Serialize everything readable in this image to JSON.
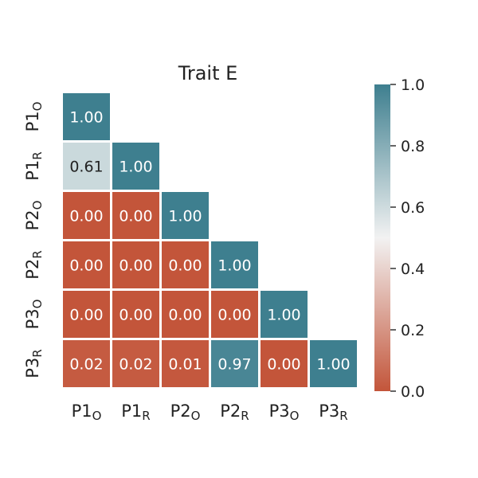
{
  "chart_data": {
    "type": "heatmap",
    "title": "Trait E",
    "row_labels": [
      {
        "base": "P1",
        "sub": "O"
      },
      {
        "base": "P1",
        "sub": "R"
      },
      {
        "base": "P2",
        "sub": "O"
      },
      {
        "base": "P2",
        "sub": "R"
      },
      {
        "base": "P3",
        "sub": "O"
      },
      {
        "base": "P3",
        "sub": "R"
      }
    ],
    "col_labels": [
      {
        "base": "P1",
        "sub": "O"
      },
      {
        "base": "P1",
        "sub": "R"
      },
      {
        "base": "P2",
        "sub": "O"
      },
      {
        "base": "P2",
        "sub": "R"
      },
      {
        "base": "P3",
        "sub": "O"
      },
      {
        "base": "P3",
        "sub": "R"
      }
    ],
    "values": [
      [
        1.0,
        null,
        null,
        null,
        null,
        null
      ],
      [
        0.61,
        1.0,
        null,
        null,
        null,
        null
      ],
      [
        0.0,
        0.0,
        1.0,
        null,
        null,
        null
      ],
      [
        0.0,
        0.0,
        0.0,
        1.0,
        null,
        null
      ],
      [
        0.0,
        0.0,
        0.0,
        0.0,
        1.0,
        null
      ],
      [
        0.02,
        0.02,
        0.01,
        0.97,
        0.0,
        1.0
      ]
    ],
    "cell_labels": [
      [
        "1.00"
      ],
      [
        "0.61",
        "1.00"
      ],
      [
        "0.00",
        "0.00",
        "1.00"
      ],
      [
        "0.00",
        "0.00",
        "0.00",
        "1.00"
      ],
      [
        "0.00",
        "0.00",
        "0.00",
        "0.00",
        "1.00"
      ],
      [
        "0.02",
        "0.02",
        "0.01",
        "0.97",
        "0.00",
        "1.00"
      ]
    ],
    "colorbar": {
      "range": [
        0.0,
        1.0
      ],
      "ticks": [
        0.0,
        0.2,
        0.4,
        0.6,
        0.8,
        1.0
      ],
      "tick_labels": [
        "0.0",
        "0.2",
        "0.4",
        "0.6",
        "0.8",
        "1.0"
      ]
    },
    "colormap": {
      "low": "#c3553a",
      "mid": "#f2f2f2",
      "high": "#3e7f8f"
    }
  }
}
